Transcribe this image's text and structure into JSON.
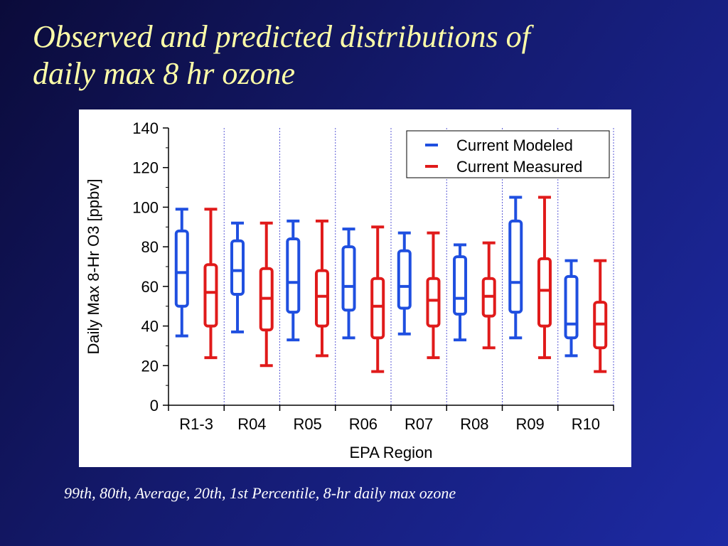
{
  "slide": {
    "title_line1": "Observed and predicted distributions of",
    "title_line2": "daily max 8 hr ozone",
    "caption": "99th, 80th, Average, 20th, 1st Percentile, 8-hr daily max ozone"
  },
  "colors": {
    "background": "#141a6e",
    "title": "#ffffa8",
    "modeled": "#1f4fe0",
    "measured": "#e01a1a",
    "divider": "#5a5ad6"
  },
  "chart_data": {
    "type": "box",
    "title": "",
    "xlabel": "EPA Region",
    "ylabel": "Daily Max 8-Hr O3 [ppbv]",
    "ylim": [
      0,
      140
    ],
    "yticks": [
      0,
      20,
      40,
      60,
      80,
      100,
      120,
      140
    ],
    "grid": false,
    "legend_position": "top-right",
    "categories": [
      "R1-3",
      "R04",
      "R05",
      "R06",
      "R07",
      "R08",
      "R09",
      "R10"
    ],
    "stat_order": [
      "p1",
      "p20",
      "mean",
      "p80",
      "p99"
    ],
    "series": [
      {
        "name": "Current Modeled",
        "color": "#1f4fe0",
        "values": [
          {
            "p1": 35,
            "p20": 50,
            "mean": 67,
            "p80": 88,
            "p99": 99
          },
          {
            "p1": 37,
            "p20": 56,
            "mean": 68,
            "p80": 83,
            "p99": 92
          },
          {
            "p1": 33,
            "p20": 47,
            "mean": 62,
            "p80": 84,
            "p99": 93
          },
          {
            "p1": 34,
            "p20": 48,
            "mean": 60,
            "p80": 80,
            "p99": 89
          },
          {
            "p1": 36,
            "p20": 49,
            "mean": 60,
            "p80": 78,
            "p99": 87
          },
          {
            "p1": 33,
            "p20": 46,
            "mean": 54,
            "p80": 75,
            "p99": 81
          },
          {
            "p1": 34,
            "p20": 47,
            "mean": 62,
            "p80": 93,
            "p99": 105
          },
          {
            "p1": 25,
            "p20": 34,
            "mean": 41,
            "p80": 65,
            "p99": 73
          }
        ]
      },
      {
        "name": "Current Measured",
        "color": "#e01a1a",
        "values": [
          {
            "p1": 24,
            "p20": 40,
            "mean": 57,
            "p80": 71,
            "p99": 99
          },
          {
            "p1": 20,
            "p20": 38,
            "mean": 54,
            "p80": 69,
            "p99": 92
          },
          {
            "p1": 25,
            "p20": 40,
            "mean": 55,
            "p80": 68,
            "p99": 93
          },
          {
            "p1": 17,
            "p20": 34,
            "mean": 50,
            "p80": 64,
            "p99": 90
          },
          {
            "p1": 24,
            "p20": 40,
            "mean": 53,
            "p80": 64,
            "p99": 87
          },
          {
            "p1": 29,
            "p20": 45,
            "mean": 55,
            "p80": 64,
            "p99": 82
          },
          {
            "p1": 24,
            "p20": 40,
            "mean": 58,
            "p80": 74,
            "p99": 105
          },
          {
            "p1": 17,
            "p20": 29,
            "mean": 41,
            "p80": 52,
            "p99": 73
          }
        ]
      }
    ]
  }
}
